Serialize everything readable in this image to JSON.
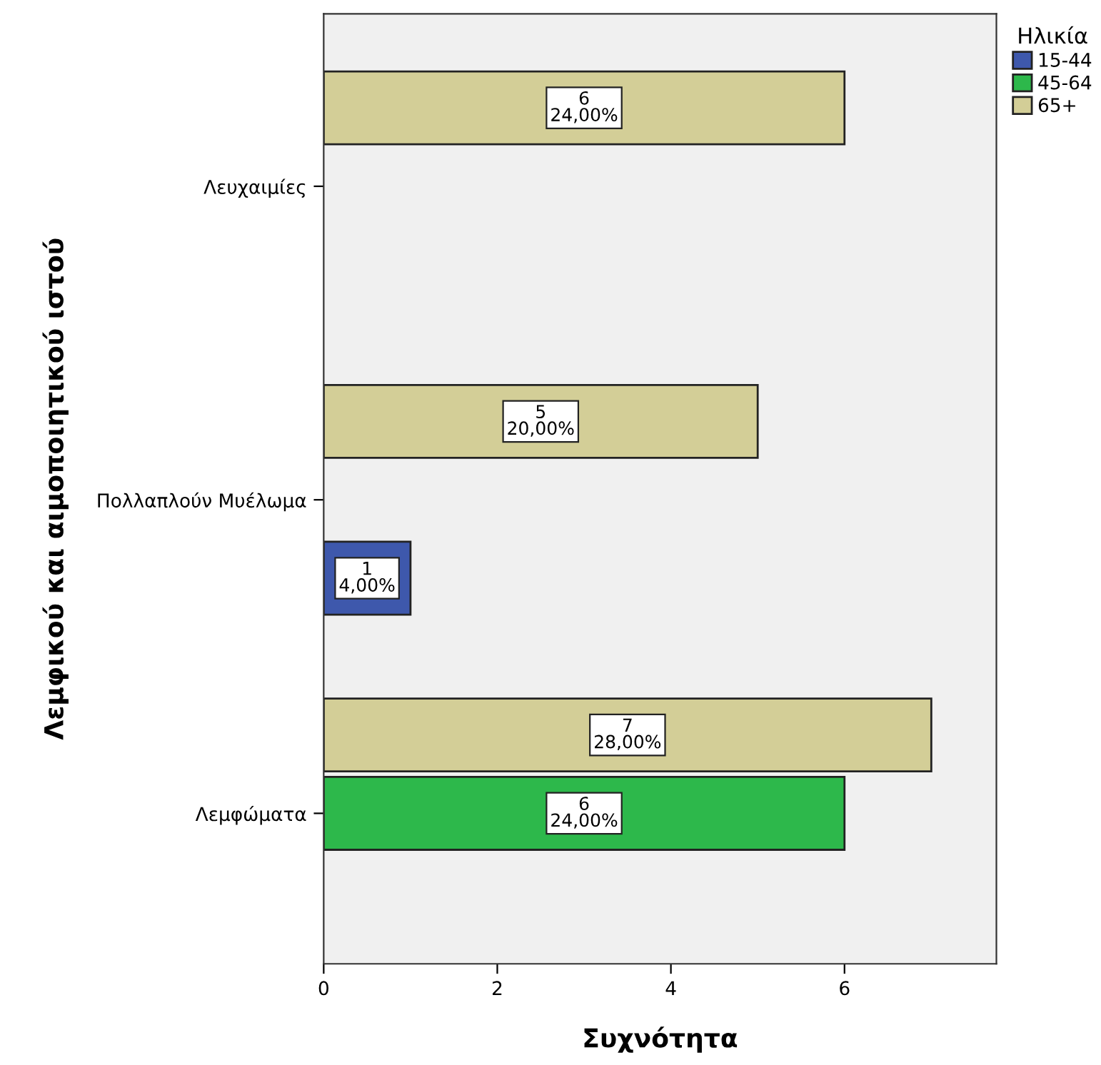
{
  "chart_data": {
    "type": "bar",
    "orientation": "horizontal",
    "ylabel": "Λεμφικού και αιμοποιητικού ιστού",
    "xlabel": "Συχνότητα",
    "legend_title": "Ηλικία",
    "categories": [
      "Λευχαιμίες",
      "Πολλαπλούν Μυέλωμα",
      "Λεμφώματα"
    ],
    "series": [
      {
        "name": "15-44",
        "color": "#3e58ac",
        "values": [
          null,
          1,
          null
        ],
        "value_labels": [
          null,
          "1\n4,00%",
          null
        ]
      },
      {
        "name": "45-64",
        "color": "#2db84b",
        "values": [
          null,
          null,
          6
        ],
        "value_labels": [
          null,
          null,
          "6\n24,00%"
        ]
      },
      {
        "name": "65+",
        "color": "#d3ce97",
        "values": [
          6,
          5,
          7
        ],
        "value_labels": [
          "6\n24,00%",
          "5\n20,00%",
          "7\n28,00%"
        ]
      }
    ],
    "xlim": [
      0,
      7.75
    ],
    "xticks": [
      0,
      2,
      4,
      6
    ],
    "grid": false,
    "legend": "top right"
  }
}
